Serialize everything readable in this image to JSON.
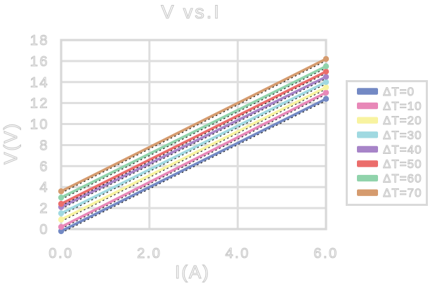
{
  "chart_data": {
    "type": "line",
    "title": "V vs.I",
    "xlabel": "I(A)",
    "ylabel": "V(V)",
    "xlim": [
      0,
      6
    ],
    "ylim": [
      0,
      18
    ],
    "x": [
      0,
      6
    ],
    "x_tick_values": [
      0,
      2,
      4,
      6
    ],
    "x_tick_labels": [
      "0.0",
      "2.0",
      "4.0",
      "6.0"
    ],
    "y_tick_values": [
      0,
      2,
      4,
      6,
      8,
      10,
      12,
      14,
      16,
      18
    ],
    "y_tick_labels": [
      "0",
      "2",
      "4",
      "6",
      "8",
      "10",
      "12",
      "14",
      "16",
      "18"
    ],
    "grid": true,
    "marker": "o",
    "legend_position": "center right",
    "series": [
      {
        "name": "ΔT=0",
        "color": "#7389c4",
        "values": [
          -0.2,
          12.4
        ]
      },
      {
        "name": "ΔT=10",
        "color": "#e888b8",
        "values": [
          0.2,
          13.0
        ]
      },
      {
        "name": "ΔT=20",
        "color": "#f8f3a0",
        "values": [
          0.9,
          13.5
        ]
      },
      {
        "name": "ΔT=30",
        "color": "#a0d9e1",
        "values": [
          1.5,
          14.0
        ]
      },
      {
        "name": "ΔT=40",
        "color": "#a784c8",
        "values": [
          2.1,
          14.5
        ]
      },
      {
        "name": "ΔT=50",
        "color": "#eb6d6b",
        "values": [
          2.4,
          15.0
        ]
      },
      {
        "name": "ΔT=60",
        "color": "#90d3ab",
        "values": [
          3.0,
          15.5
        ]
      },
      {
        "name": "ΔT=70",
        "color": "#d59b6e",
        "values": [
          3.6,
          16.2
        ]
      }
    ],
    "fit_line_style": {
      "color": "#222222",
      "dash": "dashed"
    }
  },
  "style": {
    "background": "#ffffff",
    "grid_color": "#dedede",
    "border_color": "#d8d8d8",
    "legend_border": "#dadada",
    "legend_fill": "#ffffff",
    "text_fill": "#ffffff",
    "text_stroke": "#c6c6c6"
  }
}
